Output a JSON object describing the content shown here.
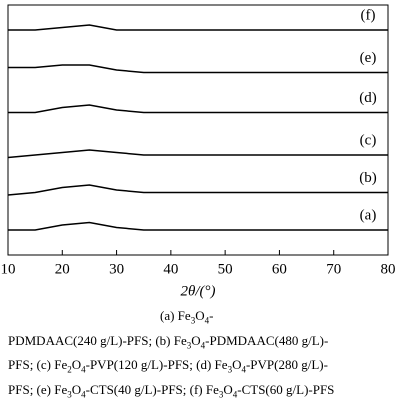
{
  "chart_data": {
    "type": "line",
    "xlabel": "2θ/(°)",
    "x": [
      10,
      15,
      20,
      25,
      30,
      35,
      40,
      45,
      50,
      55,
      60,
      65,
      70,
      75,
      80
    ],
    "series": [
      {
        "name": "(a)",
        "color": "#000000",
        "values": [
          10,
          10,
          12,
          13,
          11,
          10,
          10,
          10,
          10,
          10,
          10,
          10,
          10,
          10,
          10
        ]
      },
      {
        "name": "(b)",
        "color": "#000000",
        "values": [
          24,
          25,
          27,
          28,
          26,
          25,
          25,
          25,
          25,
          25,
          25,
          25,
          25,
          25,
          25
        ]
      },
      {
        "name": "(c)",
        "color": "#000000",
        "values": [
          39,
          40,
          41,
          42,
          41,
          40,
          40,
          40,
          40,
          40,
          40,
          40,
          40,
          40,
          40
        ]
      },
      {
        "name": "(d)",
        "color": "#000000",
        "values": [
          57,
          57,
          59,
          60,
          58,
          57,
          57,
          57,
          57,
          57,
          57,
          57,
          57,
          57,
          57
        ]
      },
      {
        "name": "(e)",
        "color": "#000000",
        "values": [
          75,
          75,
          76,
          76,
          74,
          73,
          73,
          73,
          73,
          73,
          73,
          73,
          73,
          73,
          73
        ]
      },
      {
        "name": "(f)",
        "color": "#000000",
        "values": [
          90,
          90,
          91,
          92,
          90,
          90,
          90,
          90,
          90,
          90,
          90,
          90,
          90,
          90,
          90
        ]
      }
    ],
    "xlim": [
      10,
      80
    ],
    "xticks": [
      10,
      20,
      30,
      40,
      50,
      60,
      70,
      80
    ],
    "ylim": [
      0,
      100
    ],
    "caption": [
      [
        "(a)  Fe",
        "3",
        "O",
        "4",
        "-"
      ],
      [
        "PDMDAAC(240 g/L)-PFS;  (b)  Fe",
        "3",
        "O",
        "4",
        "-PDMDAAC(480  g/L)-"
      ],
      [
        "PFS; (c) Fe",
        "2",
        "O",
        "4",
        "-PVP(120 g/L)-PFS; (d) Fe",
        "3",
        "O",
        "4",
        "-PVP(280 g/L)-"
      ],
      [
        "PFS; (e) Fe",
        "3",
        "O",
        "4",
        "-CTS(40 g/L)-PFS; (f) Fe",
        "3",
        "O",
        "4",
        "-CTS(60 g/L)-PFS"
      ]
    ]
  }
}
